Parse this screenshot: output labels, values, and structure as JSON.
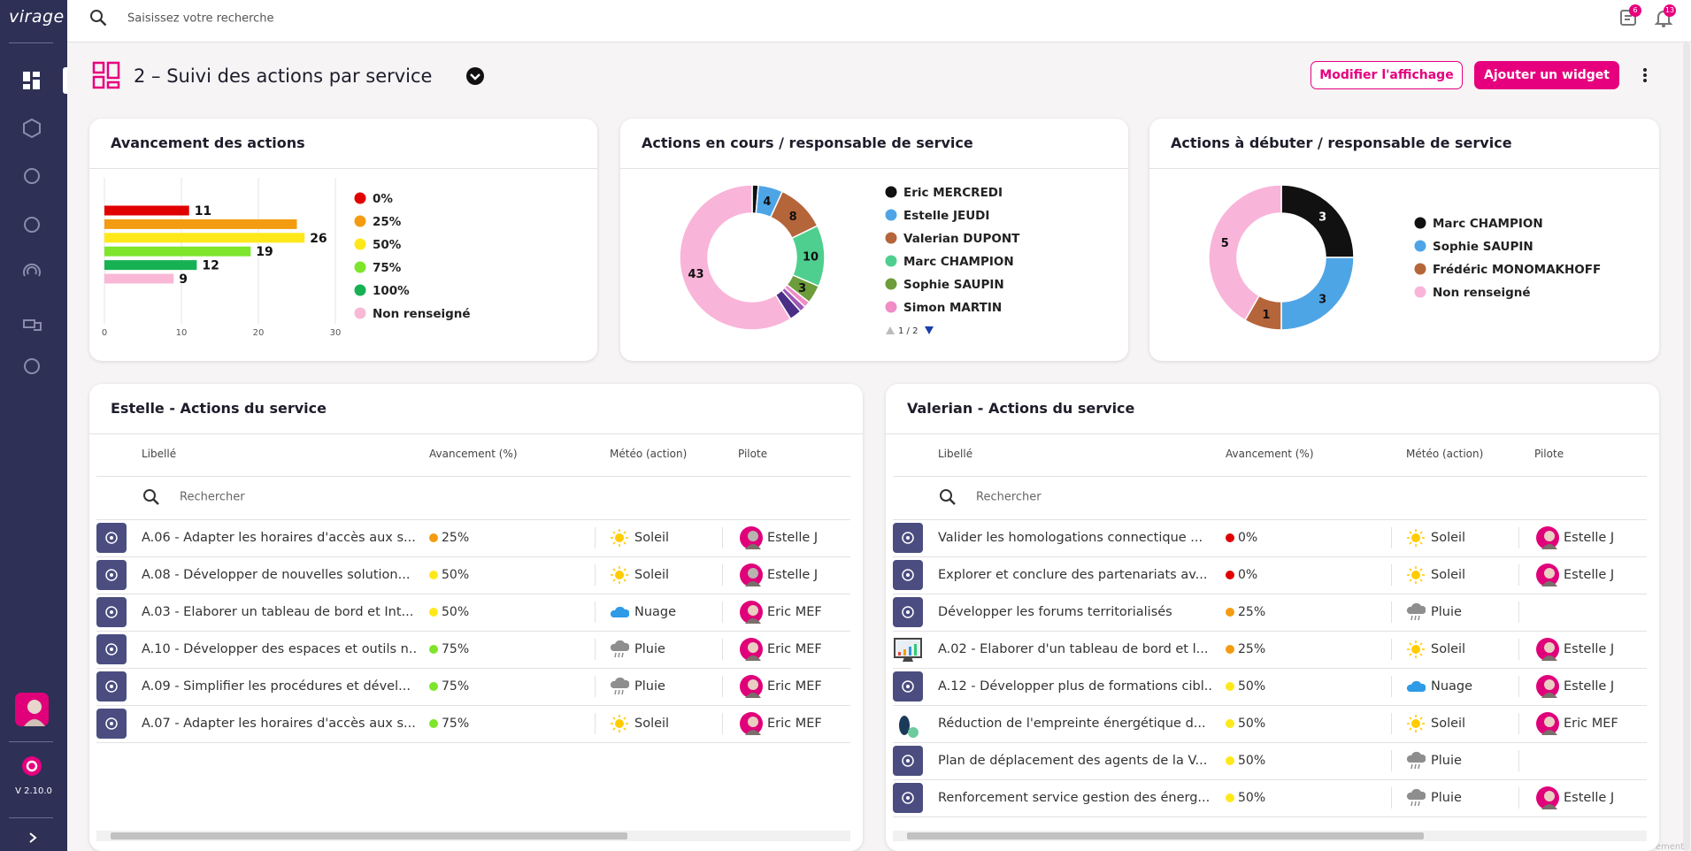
{
  "app": {
    "logo": "virage",
    "search_placeholder": "Saisissez votre recherche",
    "badges": [
      "6",
      "13"
    ],
    "version": "V 2.10.0",
    "footer_note": "Enregistrement"
  },
  "header": {
    "title": "2 – Suivi des actions par service",
    "buttons": [
      "Modifier l'affichage",
      "Ajouter un widget"
    ]
  },
  "chart_data": [
    {
      "type": "bar",
      "orientation": "horizontal",
      "title": "Avancement des actions",
      "categories": [
        "0%",
        "25%",
        "50%",
        "75%",
        "100%",
        "Non renseigné"
      ],
      "values": [
        11,
        25,
        26,
        19,
        12,
        9
      ],
      "value_labels": [
        "11",
        null,
        "26",
        "19",
        "12",
        "9"
      ],
      "colors": [
        "#e10000",
        "#f39c12",
        "#ffe81a",
        "#7ee52b",
        "#16b153",
        "#f9b8d6"
      ],
      "xlim": [
        0,
        30
      ],
      "xticks": [
        0,
        10,
        20,
        30
      ],
      "grid": true,
      "legend": "right"
    },
    {
      "type": "pie",
      "donut": true,
      "title": "Actions en cours / responsable de service",
      "categories": [
        "Eric MERCREDI",
        "Estelle JEUDI",
        "Valerian DUPONT",
        "Marc CHAMPION",
        "Sophie SAUPIN",
        "Simon MARTIN",
        null,
        null,
        null
      ],
      "values": [
        1,
        4,
        8,
        10,
        3,
        1,
        1,
        2,
        43
      ],
      "value_labels": [
        null,
        "4",
        "8",
        "10",
        "3",
        null,
        null,
        null,
        "43"
      ],
      "colors": [
        "#111111",
        "#4ea5e6",
        "#b5653a",
        "#4fcf8f",
        "#6d9c3a",
        "#f08cc8",
        "#9b59b6",
        "#4b2f86",
        "#f9b4d9"
      ],
      "legend": "right",
      "legend_page": "1 / 2"
    },
    {
      "type": "pie",
      "donut": true,
      "title": "Actions à débuter / responsable de service",
      "categories": [
        "Marc CHAMPION",
        "Sophie SAUPIN",
        "Frédéric MONOMAKHOFF",
        "Non renseigné"
      ],
      "values": [
        3,
        3,
        1,
        5
      ],
      "colors": [
        "#111111",
        "#4ea5e6",
        "#b5653a",
        "#f9b4d9"
      ],
      "legend": "right"
    }
  ],
  "tables": [
    {
      "title": "Estelle - Actions du service",
      "columns": [
        "Libellé",
        "Avancement (%)",
        "Météo (action)",
        "Pilote"
      ],
      "search_placeholder": "Rechercher",
      "rows": [
        {
          "icon": "target",
          "label": "A.06 - Adapter les horaires d'accès aux s...",
          "progress": "25%",
          "weather": "Soleil",
          "weather_icon": "sun",
          "pilot": "Estelle J"
        },
        {
          "icon": "target",
          "label": "A.08 - Développer de nouvelles solution...",
          "progress": "50%",
          "weather": "Soleil",
          "weather_icon": "sun",
          "pilot": "Estelle J"
        },
        {
          "icon": "target",
          "label": "A.03 - Elaborer un tableau de bord et Int...",
          "progress": "50%",
          "weather": "Nuage",
          "weather_icon": "cloud",
          "pilot": "Eric MEF"
        },
        {
          "icon": "target",
          "label": "A.10 - Développer des espaces et outils n...",
          "progress": "75%",
          "weather": "Pluie",
          "weather_icon": "rain",
          "pilot": "Eric MEF"
        },
        {
          "icon": "target",
          "label": "A.09 - Simplifier les procédures et dével...",
          "progress": "75%",
          "weather": "Pluie",
          "weather_icon": "rain",
          "pilot": "Eric MEF"
        },
        {
          "icon": "target",
          "label": "A.07 - Adapter les horaires d'accès aux s...",
          "progress": "75%",
          "weather": "Soleil",
          "weather_icon": "sun",
          "pilot": "Eric MEF"
        }
      ]
    },
    {
      "title": "Valerian - Actions du service",
      "columns": [
        "Libellé",
        "Avancement (%)",
        "Météo (action)",
        "Pilote"
      ],
      "search_placeholder": "Rechercher",
      "rows": [
        {
          "icon": "target",
          "label": "Valider les homologations connectique ...",
          "progress": "0%",
          "weather": "Soleil",
          "weather_icon": "sun",
          "pilot": "Estelle J"
        },
        {
          "icon": "target",
          "label": "Explorer et conclure des partenariats av...",
          "progress": "0%",
          "weather": "Soleil",
          "weather_icon": "sun",
          "pilot": "Estelle J"
        },
        {
          "icon": "target",
          "label": "Développer les forums territorialisés",
          "progress": "25%",
          "weather": "Pluie",
          "weather_icon": "rain",
          "pilot": null
        },
        {
          "icon": "chart",
          "label": "A.02 - Elaborer d'un tableau de bord et l...",
          "progress": "25%",
          "weather": "Soleil",
          "weather_icon": "sun",
          "pilot": "Estelle J"
        },
        {
          "icon": "target",
          "label": "A.12 - Développer plus de formations cibl...",
          "progress": "50%",
          "weather": "Nuage",
          "weather_icon": "cloud",
          "pilot": "Estelle J"
        },
        {
          "icon": "foot",
          "label": "Réduction de l'empreinte énergétique d...",
          "progress": "50%",
          "weather": "Soleil",
          "weather_icon": "sun",
          "pilot": "Eric MEF"
        },
        {
          "icon": "target",
          "label": "Plan de déplacement des agents de la V...",
          "progress": "50%",
          "weather": "Pluie",
          "weather_icon": "rain",
          "pilot": null
        },
        {
          "icon": "target",
          "label": "Renforcement service gestion des énerg...",
          "progress": "50%",
          "weather": "Pluie",
          "weather_icon": "rain",
          "pilot": "Estelle J"
        }
      ]
    }
  ]
}
